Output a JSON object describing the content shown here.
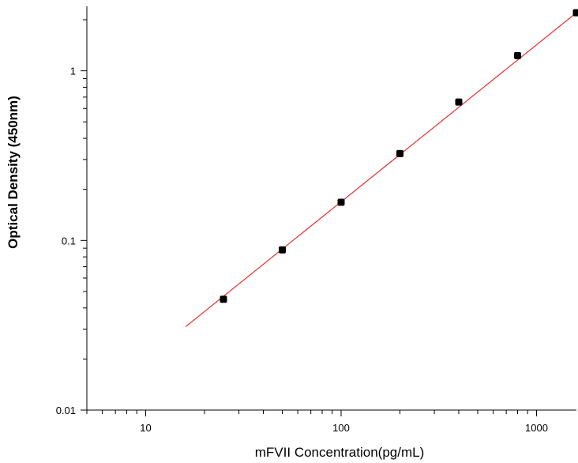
{
  "chart_data": {
    "type": "scatter",
    "xlabel": "mFVII  Concentration(pg/mL)",
    "ylabel": "Optical Density (450nm)",
    "x_scale": "log",
    "y_scale": "log",
    "xlim": [
      5,
      1600
    ],
    "ylim": [
      0.01,
      2.4
    ],
    "x_ticks": [
      10,
      100,
      1000
    ],
    "x_tick_labels": [
      "10",
      "100",
      "1000"
    ],
    "y_ticks": [
      0.01,
      0.1,
      1
    ],
    "y_tick_labels": [
      "0.01",
      "0.1",
      "1"
    ],
    "grid": false,
    "series": [
      {
        "x": [
          25,
          50,
          100,
          200,
          400,
          800,
          1600
        ],
        "y": [
          0.045,
          0.088,
          0.168,
          0.325,
          0.655,
          1.23,
          2.2
        ],
        "marker": "square",
        "color": "#000000"
      }
    ],
    "fit_line": {
      "x": [
        16,
        1600
      ],
      "y": [
        0.031,
        2.2
      ],
      "color": "#e8302a"
    }
  }
}
